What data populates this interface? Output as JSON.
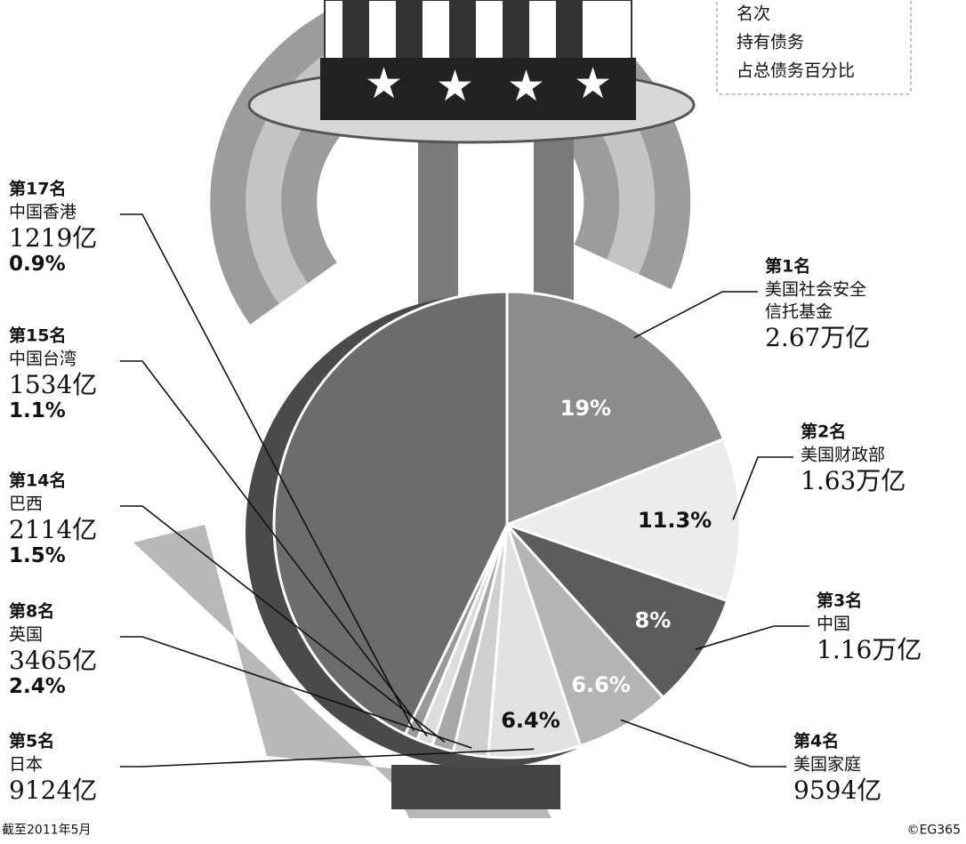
{
  "chart_data": {
    "type": "pie",
    "legend_box": [
      "名次",
      "持有债务",
      "占总债务百分比"
    ],
    "categories": [
      "第1名",
      "第2名",
      "第3名",
      "第4名",
      "第5名",
      "第8名",
      "第14名",
      "第15名",
      "第17名",
      null
    ],
    "names": [
      [
        "美国社会安全",
        "信托基金"
      ],
      [
        "美国财政部"
      ],
      [
        "中国"
      ],
      [
        "美国家庭"
      ],
      [
        "日本"
      ],
      [
        "英国"
      ],
      [
        "巴西"
      ],
      [
        "中国台湾"
      ],
      [
        "中国香港"
      ],
      null
    ],
    "amounts": [
      "2.67万亿",
      "1.63万亿",
      "1.16万亿",
      "9594亿",
      "9124亿",
      "3465亿",
      "2114亿",
      "1534亿",
      "1219亿",
      null
    ],
    "values": [
      19,
      11.3,
      8,
      6.6,
      6.4,
      2.4,
      1.5,
      1.1,
      0.9,
      42.8
    ],
    "value_labels": [
      "19%",
      "11.3%",
      "8%",
      "6.6%",
      "6.4%",
      "2.4%",
      "1.5%",
      "1.1%",
      "0.9%",
      null
    ],
    "colors": [
      "#8c8c8c",
      "#ececec",
      "#5c5c5c",
      "#b4b4b4",
      "#e2e2e2",
      "#cfcfcf",
      "#a8a8a8",
      "#dcdcdc",
      "#9a9a9a",
      "#6c6c6c"
    ],
    "note": "截至2011年5月",
    "credit": "©EG365"
  }
}
